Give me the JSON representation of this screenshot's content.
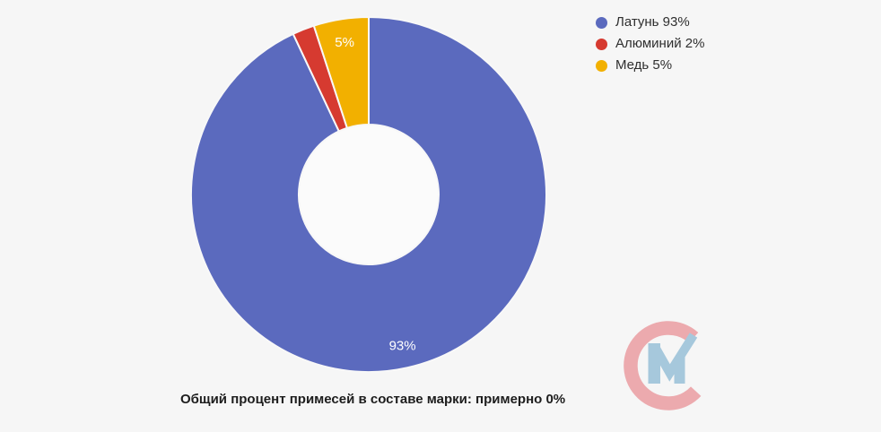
{
  "page": {
    "background_color": "#f6f6f6"
  },
  "chart_data": {
    "type": "pie",
    "variant": "donut",
    "direction": "clockwise",
    "start_angle_deg": 0,
    "inner_radius_ratio": 0.394,
    "categories": [
      "Латунь",
      "Алюминий",
      "Медь"
    ],
    "values": [
      93,
      2,
      5
    ],
    "unit": "%",
    "slices": [
      {
        "name": "Латунь",
        "value": 93,
        "color": "#5b6abe",
        "slice_label": "93%",
        "legend_label": "Латунь 93%"
      },
      {
        "name": "Алюминий",
        "value": 2,
        "color": "#d63a30",
        "slice_label": "",
        "legend_label": "Алюминий 2%"
      },
      {
        "name": "Медь",
        "value": 5,
        "color": "#f2b000",
        "slice_label": "5%",
        "legend_label": "Медь 5%"
      }
    ],
    "slice_label_color": "#ffffff",
    "slice_border_color": "#f8f8f8",
    "hole_color": "#fbfbfb",
    "legend_position": "top-right",
    "grid": false,
    "caption": "Общий процент примесей в составе марки: примерно 0%"
  },
  "watermark": {
    "description": "CM checkmark logo",
    "c_color": "#ecaaae",
    "m_color": "#a6c8dc"
  }
}
